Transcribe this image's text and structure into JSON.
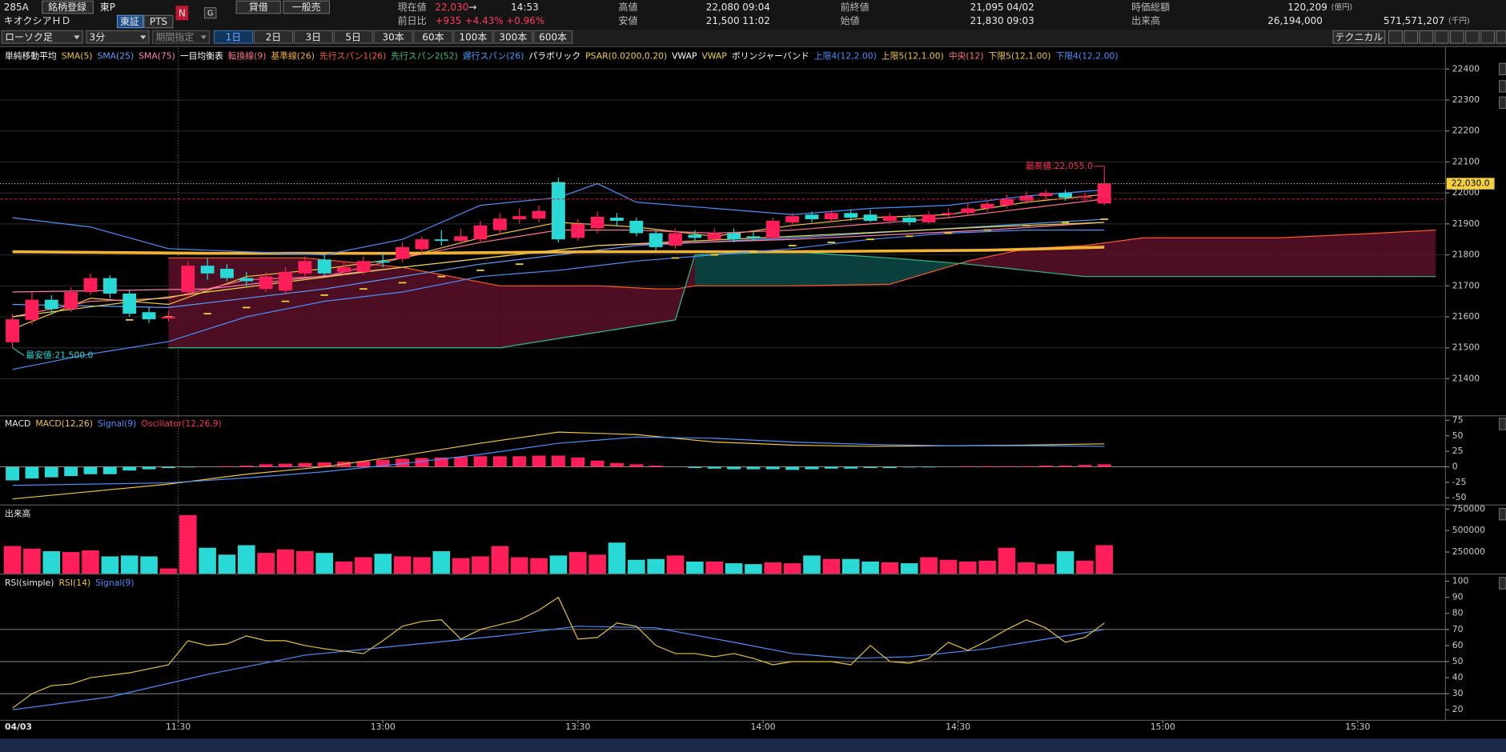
{
  "header": {
    "code": "285A",
    "register": "銘柄登録",
    "market": "東P",
    "name": "キオクシアＨＤ",
    "exchange": "東証",
    "pts": "PTS",
    "news": "N",
    "g": "G",
    "margin": "貸借",
    "margin_type": "一般売",
    "price": {
      "label": "現在値",
      "value": "22,030",
      "arrow": "→",
      "time": "14:53"
    },
    "change": {
      "label": "前日比",
      "value": "+935",
      "pct": "+4.43%",
      "extra": "+0.96%"
    },
    "high": {
      "label": "高値",
      "value": "22,080",
      "time": "09:04"
    },
    "low": {
      "label": "安値",
      "value": "21,500",
      "time": "11:02"
    },
    "prev_close": {
      "label": "前終値",
      "value": "21,095",
      "date": "04/02"
    },
    "open": {
      "label": "始値",
      "value": "21,830",
      "time": "09:03"
    },
    "market_cap": {
      "label": "時価総額",
      "value": "120,209",
      "unit": "(億円)"
    },
    "volume": {
      "label": "出来高",
      "value": "26,194,000",
      "turnover": "571,571,207",
      "unit": "(千円)"
    }
  },
  "toolbar": {
    "chart_type": "ローソク足",
    "interval": "3分",
    "range": "期間指定",
    "periods": [
      "1日",
      "2日",
      "3日",
      "5日",
      "30本",
      "60本",
      "100本",
      "300本",
      "600本"
    ],
    "selected": 0,
    "technical": "テクニカル"
  },
  "chart_data": [
    {
      "type": "candlestick",
      "date_label": "04/03",
      "legend": [
        {
          "label": "単純移動平均",
          "color": "#ffffff"
        },
        {
          "label": "SMA(5)",
          "color": "#f2c43a"
        },
        {
          "label": "SMA(25)",
          "color": "#5aa0ff"
        },
        {
          "label": "SMA(75)",
          "color": "#ff7eb6"
        },
        {
          "label": "一目均衡表",
          "color": "#ffffff"
        },
        {
          "label": "転換線(9)",
          "color": "#ff6f8f"
        },
        {
          "label": "基準線(26)",
          "color": "#f2b233"
        },
        {
          "label": "先行スパン1(26)",
          "color": "#ff5a2a"
        },
        {
          "label": "先行スパン2(52)",
          "color": "#2ec08a"
        },
        {
          "label": "遅行スパン(26)",
          "color": "#4aa0ff"
        },
        {
          "label": "パラボリック",
          "color": "#ffffff"
        },
        {
          "label": "PSAR(0.0200,0.20)",
          "color": "#f2d23a"
        },
        {
          "label": "VWAP",
          "color": "#ffffff"
        },
        {
          "label": "VWAP",
          "color": "#f2d23a"
        },
        {
          "label": "ボリンジャーバンド",
          "color": "#ffffff"
        },
        {
          "label": "上限4(12,2.00)",
          "color": "#4a8fff"
        },
        {
          "label": "上限5(12,1.00)",
          "color": "#f2c43a"
        },
        {
          "label": "中央(12)",
          "color": "#ff6f8f"
        },
        {
          "label": "下限5(12,1.00)",
          "color": "#f2c43a"
        },
        {
          "label": "下限4(12,2.00)",
          "color": "#4a8fff"
        }
      ],
      "open": [
        21518,
        21590,
        21655,
        21625,
        21680,
        21725,
        21675,
        21615,
        21595,
        21680,
        21765,
        21755,
        21725,
        21690,
        21685,
        21740,
        21785,
        21745,
        21745,
        21780,
        21787,
        21818,
        21850,
        21845,
        21850,
        21880,
        21915,
        21917,
        22035,
        21855,
        21886,
        21920,
        21910,
        21870,
        21830,
        21865,
        21850,
        21870,
        21860,
        21855,
        21905,
        21930,
        21915,
        21935,
        21930,
        21910,
        21920,
        21905,
        21930,
        21935,
        21950,
        21960,
        21975,
        21990,
        22000,
        21985,
        21966
      ],
      "high": [
        21610,
        21680,
        21670,
        21695,
        21740,
        21735,
        21685,
        21630,
        21620,
        21780,
        21790,
        21770,
        21745,
        21745,
        21760,
        21795,
        21800,
        21775,
        21795,
        21805,
        21840,
        21860,
        21880,
        21885,
        21910,
        21935,
        21950,
        21960,
        22050,
        21915,
        21940,
        21935,
        21920,
        21880,
        21885,
        21880,
        21885,
        21885,
        21875,
        21920,
        21935,
        21940,
        21945,
        21945,
        21945,
        21935,
        21930,
        21940,
        21950,
        21970,
        21975,
        21995,
        22005,
        22010,
        22010,
        22000,
        22055
      ],
      "low": [
        21500,
        21575,
        21610,
        21615,
        21670,
        21660,
        21600,
        21580,
        21585,
        21660,
        21720,
        21715,
        21700,
        21680,
        21675,
        21730,
        21730,
        21735,
        21735,
        21760,
        21775,
        21805,
        21830,
        21835,
        21840,
        21865,
        21900,
        21905,
        21840,
        21845,
        21870,
        21895,
        21860,
        21815,
        21820,
        21845,
        21840,
        21840,
        21845,
        21850,
        21895,
        21905,
        21905,
        21910,
        21905,
        21900,
        21895,
        21900,
        21920,
        21925,
        21940,
        21950,
        21965,
        21980,
        21975,
        21970,
        21960
      ],
      "close": [
        21592,
        21655,
        21625,
        21680,
        21725,
        21675,
        21610,
        21592,
        21600,
        21765,
        21740,
        21725,
        21715,
        21730,
        21745,
        21780,
        21740,
        21760,
        21780,
        21775,
        21825,
        21850,
        21845,
        21860,
        21895,
        21917,
        21925,
        21942,
        21850,
        21900,
        21923,
        21910,
        21870,
        21825,
        21870,
        21855,
        21870,
        21850,
        21855,
        21910,
        21925,
        21915,
        21935,
        21920,
        21910,
        21925,
        21905,
        21930,
        21935,
        21950,
        21965,
        21980,
        21990,
        22000,
        21985,
        21990,
        22030
      ],
      "up_color": "#ff1e5a",
      "down_color": "#29d9d5",
      "xlim": [
        -0.64,
        73.5
      ],
      "ylim": [
        21285,
        22468
      ],
      "yticks": [
        21400,
        21500,
        21600,
        21700,
        21800,
        21900,
        22000,
        22100,
        22200,
        22300,
        22400
      ],
      "grid": true,
      "xticks": [
        {
          "value": 8.5,
          "label": "11:30"
        },
        {
          "value": 19,
          "label": "13:00"
        },
        {
          "value": 29,
          "label": "13:30"
        },
        {
          "value": 38.5,
          "label": "14:00"
        },
        {
          "value": 48.5,
          "label": "14:30"
        },
        {
          "value": 59,
          "label": "15:00"
        },
        {
          "value": 69,
          "label": "15:30"
        }
      ],
      "session_break": 8.5,
      "lines": [
        {
          "color": "#f2c43a",
          "width": 1,
          "x": [
            0,
            4,
            8,
            12,
            16,
            20,
            24,
            28,
            32,
            36,
            40,
            44,
            48,
            52,
            56
          ],
          "values": [
            21560,
            21660,
            21640,
            21730,
            21755,
            21790,
            21855,
            21905,
            21890,
            21860,
            21895,
            21920,
            21930,
            21970,
            21995
          ]
        },
        {
          "color": "#5aa0ff",
          "width": 1,
          "x": [
            0,
            8,
            16,
            24,
            32,
            40,
            48,
            56
          ],
          "values": [
            21640,
            21630,
            21690,
            21770,
            21830,
            21855,
            21885,
            21915
          ]
        },
        {
          "color": "#ff7eb6",
          "width": 1,
          "x": [
            0,
            10,
            20,
            30,
            40,
            50,
            56
          ],
          "values": [
            21680,
            21690,
            21760,
            21830,
            21850,
            21880,
            21905
          ]
        },
        {
          "color": "#ff6f8f",
          "width": 1,
          "x": [
            0,
            4,
            8,
            12,
            16,
            20,
            24,
            28,
            32,
            36,
            40,
            44,
            48,
            52,
            56
          ],
          "values": [
            21600,
            21650,
            21660,
            21720,
            21730,
            21790,
            21840,
            21880,
            21880,
            21870,
            21880,
            21900,
            21920,
            21950,
            21980
          ]
        },
        {
          "color": "#f2b233",
          "width": 3,
          "x": [
            0,
            10,
            20,
            30,
            40,
            50,
            56
          ],
          "values": [
            21810,
            21805,
            21805,
            21810,
            21810,
            21815,
            21825
          ]
        },
        {
          "color": "#e8d84a",
          "width": 1,
          "x": [
            0,
            10,
            20,
            30,
            40,
            50,
            56
          ],
          "values": [
            21600,
            21680,
            21760,
            21830,
            21860,
            21890,
            21905
          ]
        },
        {
          "color": "#4a8fff",
          "width": 1,
          "x": [
            0,
            4,
            8,
            12,
            16,
            20,
            24,
            28,
            30,
            32,
            36,
            40,
            44,
            48,
            52,
            56
          ],
          "values": [
            21920,
            21890,
            21820,
            21810,
            21800,
            21850,
            21960,
            21985,
            22030,
            21970,
            21950,
            21930,
            21950,
            21960,
            21990,
            22010
          ]
        },
        {
          "color": "#4a8fff",
          "width": 1,
          "x": [
            0,
            4,
            8,
            12,
            16,
            20,
            24,
            28,
            32,
            36,
            40,
            44,
            48,
            52,
            56
          ],
          "values": [
            21430,
            21480,
            21520,
            21600,
            21650,
            21680,
            21730,
            21750,
            21780,
            21800,
            21820,
            21850,
            21870,
            21880,
            21880
          ]
        }
      ],
      "cloud": {
        "x": [
          8,
          15,
          20,
          25,
          30,
          33,
          34,
          35,
          40,
          45,
          49,
          52,
          55,
          58,
          65,
          70,
          73
        ],
        "span1": [
          21790,
          21790,
          21760,
          21700,
          21700,
          21690,
          21690,
          21700,
          21700,
          21705,
          21780,
          21820,
          21830,
          21855,
          21855,
          21870,
          21880
        ],
        "span2": [
          21500,
          21500,
          21500,
          21500,
          21550,
          21580,
          21590,
          21800,
          21810,
          21790,
          21770,
          21750,
          21730,
          21730,
          21730,
          21730,
          21730
        ],
        "span1_color": "#ff5a2a",
        "span2_color": "#2ec08a",
        "up_fill": "#5a0f28",
        "down_fill": "#0d4a48"
      },
      "psar": {
        "color": "#f2d23a",
        "x": [
          6,
          8,
          10,
          12,
          14,
          16,
          18,
          20,
          22,
          24,
          26,
          34,
          36,
          38,
          40,
          42,
          44,
          46,
          48,
          50,
          52,
          54,
          56
        ],
        "values": [
          21590,
          21600,
          21610,
          21630,
          21650,
          21670,
          21690,
          21710,
          21730,
          21750,
          21770,
          21790,
          21800,
          21810,
          21830,
          21840,
          21850,
          21860,
          21870,
          21880,
          21895,
          21905,
          21915
        ]
      },
      "last_price": 22030,
      "last_price_label": "22,030.0",
      "last_price_color": "#f5d142",
      "ref_line": 21980,
      "max_note": {
        "text": "最高値:22,055.0",
        "x": 56,
        "value": 22055,
        "color": "#ff2d5a"
      },
      "min_note": {
        "text": "最安値:21,500.0",
        "x": 0,
        "value": 21500,
        "color": "#29d9d5"
      }
    },
    {
      "type": "macd",
      "title": "MACD",
      "legend": [
        {
          "label": "MACD(12,26)",
          "color": "#f2c43a"
        },
        {
          "label": "Signal(9)",
          "color": "#4a8fff"
        },
        {
          "label": "Oscillator(12,26,9)",
          "color": "#ff2d5a"
        }
      ],
      "macd": {
        "x": [
          0,
          4,
          8,
          12,
          16,
          20,
          24,
          28,
          32,
          36,
          40,
          44,
          48,
          52,
          56
        ],
        "values": [
          -52,
          -40,
          -28,
          -12,
          0,
          18,
          38,
          56,
          52,
          40,
          35,
          33,
          34,
          35,
          37
        ]
      },
      "signal": {
        "x": [
          0,
          4,
          8,
          12,
          16,
          20,
          24,
          28,
          32,
          36,
          40,
          44,
          48,
          52,
          56
        ],
        "values": [
          -30,
          -28,
          -26,
          -18,
          -8,
          5,
          20,
          38,
          48,
          46,
          40,
          36,
          34,
          34,
          33
        ]
      },
      "oscillator": [
        -22,
        -19,
        -17,
        -15,
        -12,
        -12,
        -6,
        -4,
        -2,
        -1,
        0,
        1,
        2,
        4,
        5,
        6,
        7,
        8,
        9,
        11,
        13,
        14,
        15,
        16,
        17,
        17,
        17,
        18,
        18,
        15,
        10,
        6,
        4,
        2,
        0,
        -2,
        -3,
        -4,
        -4,
        -4,
        -5,
        -4,
        -3,
        -3,
        -2,
        -2,
        -1,
        -1,
        0,
        1,
        1,
        1,
        1,
        2,
        2,
        3,
        4
      ],
      "pos_color": "#ff1e5a",
      "neg_color": "#29d9d5",
      "ylim": [
        -61,
        80
      ],
      "yticks": [
        -50,
        -25,
        0,
        25,
        50,
        75
      ],
      "levels": [
        0
      ]
    },
    {
      "type": "bar",
      "title": "出来高",
      "values": [
        320000,
        290000,
        260000,
        250000,
        270000,
        200000,
        210000,
        200000,
        60000,
        680000,
        300000,
        220000,
        330000,
        240000,
        280000,
        260000,
        240000,
        140000,
        190000,
        230000,
        200000,
        190000,
        260000,
        180000,
        200000,
        320000,
        190000,
        180000,
        210000,
        250000,
        220000,
        360000,
        160000,
        170000,
        210000,
        140000,
        140000,
        120000,
        110000,
        130000,
        120000,
        210000,
        170000,
        170000,
        140000,
        130000,
        120000,
        190000,
        160000,
        140000,
        150000,
        300000,
        130000,
        110000,
        260000,
        150000,
        330000
      ],
      "ylim": [
        0,
        780000
      ],
      "yticks": [
        250000,
        500000,
        750000
      ]
    },
    {
      "type": "line",
      "title": "RSI(simple)",
      "legend": [
        {
          "label": "RSI(14)",
          "color": "#e8c23a"
        },
        {
          "label": "Signal(9)",
          "color": "#4a8fff"
        }
      ],
      "rsi": {
        "x": [
          0,
          1,
          2,
          3,
          4,
          6,
          8,
          9,
          10,
          11,
          12,
          13,
          14,
          15,
          16,
          18,
          19,
          20,
          21,
          22,
          23,
          24,
          26,
          27,
          28,
          29,
          30,
          31,
          32,
          33,
          34,
          35,
          36,
          37,
          38,
          39,
          40,
          42,
          43,
          44,
          45,
          46,
          47,
          48,
          49,
          50,
          51,
          52,
          53,
          54,
          55,
          56
        ],
        "values": [
          21,
          30,
          35,
          36,
          40,
          43,
          48,
          63,
          60,
          61,
          66,
          63,
          63,
          60,
          58,
          55,
          63,
          72,
          75,
          76,
          64,
          70,
          76,
          82,
          90,
          64,
          65,
          74,
          72,
          60,
          55,
          55,
          53,
          55,
          52,
          48,
          50,
          50,
          48,
          60,
          50,
          49,
          52,
          62,
          57,
          63,
          70,
          76,
          71,
          62,
          65,
          74
        ]
      },
      "signal": {
        "x": [
          0,
          5,
          10,
          15,
          20,
          25,
          29,
          33,
          37,
          40,
          43,
          46,
          50,
          53,
          56
        ],
        "values": [
          20,
          28,
          42,
          54,
          60,
          66,
          72,
          71,
          62,
          55,
          52,
          53,
          58,
          64,
          70
        ]
      },
      "ylim": [
        14,
        103.6
      ],
      "yticks": [
        20,
        30,
        40,
        50,
        60,
        70,
        80,
        90,
        100
      ],
      "levels": [
        30,
        50,
        70
      ]
    }
  ]
}
